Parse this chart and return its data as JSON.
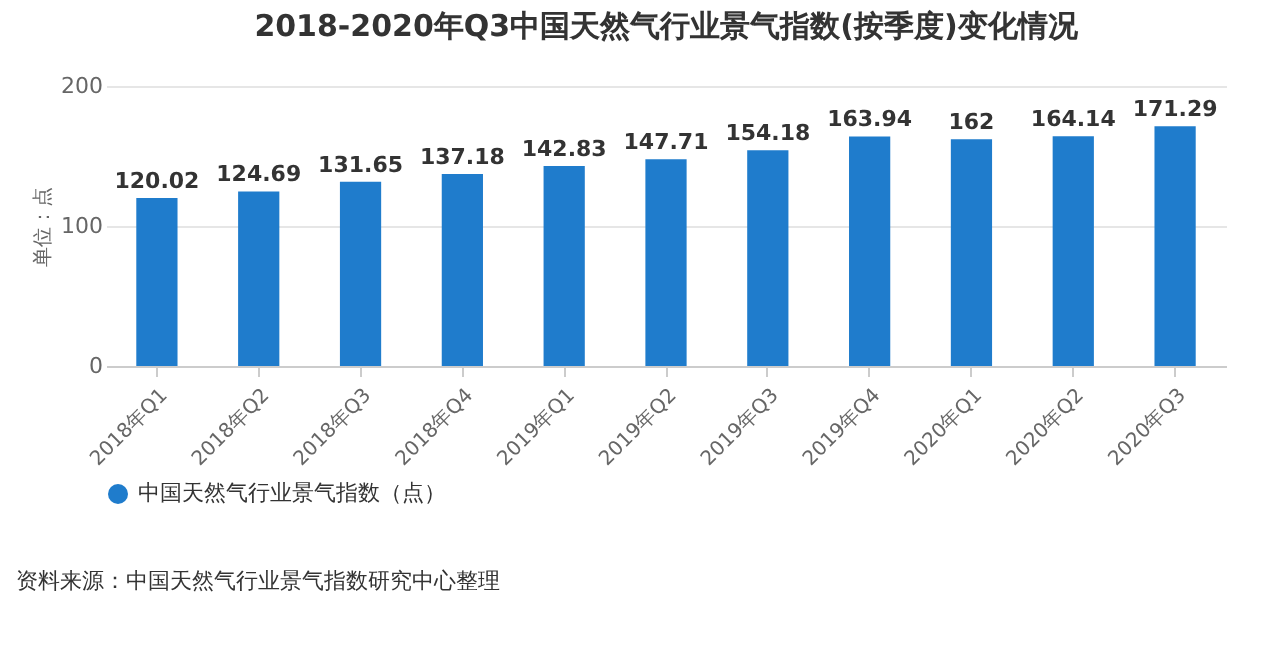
{
  "chart_data": {
    "type": "bar",
    "title": "2018-2020年Q3中国天然气行业景气指数(按季度)变化情况",
    "ylabel": "单位：点",
    "categories": [
      "2018年Q1",
      "2018年Q2",
      "2018年Q3",
      "2018年Q4",
      "2019年Q1",
      "2019年Q2",
      "2019年Q3",
      "2019年Q4",
      "2020年Q1",
      "2020年Q2",
      "2020年Q3"
    ],
    "series": [
      {
        "name": "中国天然气行业景气指数（点）",
        "color": "#1f7ccc",
        "values": [
          120.02,
          124.69,
          131.65,
          137.18,
          142.83,
          147.71,
          154.18,
          163.94,
          162,
          164.14,
          171.29
        ]
      }
    ],
    "ylim": [
      0,
      200
    ],
    "yticks": [
      0,
      100,
      200
    ],
    "grid": "y",
    "legend": "bottom",
    "data_labels": true,
    "annotations": [
      "资料来源：中国天然气行业景气指数研究中心整理"
    ]
  }
}
